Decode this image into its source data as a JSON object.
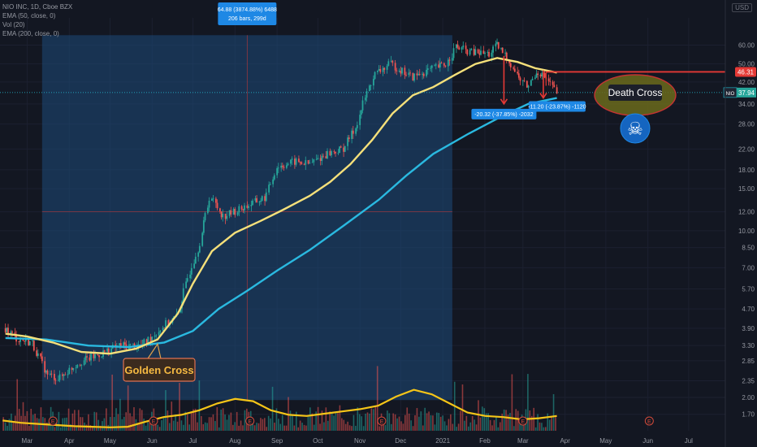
{
  "legend": {
    "symbol_line": "NIO INC, 1D, Cboe BZX",
    "ema50": "EMA (50, close, 0)",
    "vol": "Vol (20)",
    "ema200": "EMA (200, close, 0)"
  },
  "currency": "USD",
  "colors": {
    "background": "#131722",
    "ema50": "#f5e07a",
    "ema200": "#2ab9e0",
    "volume_ma": "#f5c518",
    "up_candle": "#26a69a",
    "down_candle": "#ef5350",
    "measure_box": "#1e4a7a",
    "annotation_red": "#e53935",
    "label_blue": "#1e88e5"
  },
  "chart_data": {
    "type": "candlestick",
    "y_scale": "log",
    "ylim": [
      1.45,
      78
    ],
    "y_ticks": [
      "60.00",
      "50.00",
      "42.00",
      "34.00",
      "28.00",
      "22.00",
      "18.00",
      "15.00",
      "12.00",
      "10.00",
      "8.50",
      "7.00",
      "5.70",
      "4.70",
      "3.90",
      "3.30",
      "2.85",
      "2.35",
      "2.00",
      "1.70"
    ],
    "x_ticks": [
      "Mar",
      "Apr",
      "May",
      "Jun",
      "Jul",
      "Aug",
      "Sep",
      "Oct",
      "Nov",
      "Dec",
      "2021",
      "Feb",
      "Mar",
      "Apr",
      "May",
      "Jun",
      "Jul"
    ],
    "earnings_marker": "E",
    "ema50_path": [
      [
        "2020-02-14",
        3.7
      ],
      [
        "2020-03-01",
        3.6
      ],
      [
        "2020-03-20",
        3.4
      ],
      [
        "2020-04-10",
        3.1
      ],
      [
        "2020-05-01",
        3.05
      ],
      [
        "2020-05-20",
        3.2
      ],
      [
        "2020-06-05",
        3.5
      ],
      [
        "2020-06-20",
        4.5
      ],
      [
        "2020-07-01",
        6.0
      ],
      [
        "2020-07-15",
        8.2
      ],
      [
        "2020-08-01",
        9.8
      ],
      [
        "2020-08-20",
        11.0
      ],
      [
        "2020-09-05",
        12.2
      ],
      [
        "2020-09-25",
        14.0
      ],
      [
        "2020-10-10",
        16.0
      ],
      [
        "2020-10-25",
        19.0
      ],
      [
        "2020-11-10",
        24.0
      ],
      [
        "2020-11-25",
        31.0
      ],
      [
        "2020-12-10",
        37.0
      ],
      [
        "2020-12-25",
        40.0
      ],
      [
        "2021-01-10",
        45.0
      ],
      [
        "2021-01-25",
        50.0
      ],
      [
        "2021-02-10",
        53.0
      ],
      [
        "2021-02-25",
        51.0
      ],
      [
        "2021-03-10",
        48.0
      ],
      [
        "2021-03-26",
        46.0
      ]
    ],
    "ema200_path": [
      [
        "2020-02-14",
        3.55
      ],
      [
        "2020-03-15",
        3.5
      ],
      [
        "2020-04-15",
        3.3
      ],
      [
        "2020-05-15",
        3.25
      ],
      [
        "2020-06-10",
        3.4
      ],
      [
        "2020-07-01",
        3.8
      ],
      [
        "2020-07-20",
        4.7
      ],
      [
        "2020-08-10",
        5.6
      ],
      [
        "2020-09-01",
        6.8
      ],
      [
        "2020-09-25",
        8.3
      ],
      [
        "2020-10-20",
        10.5
      ],
      [
        "2020-11-15",
        13.5
      ],
      [
        "2020-12-05",
        17.0
      ],
      [
        "2020-12-25",
        21.0
      ],
      [
        "2021-01-20",
        25.5
      ],
      [
        "2021-02-15",
        30.5
      ],
      [
        "2021-03-05",
        34.0
      ],
      [
        "2021-03-26",
        36.0
      ]
    ],
    "candles_close_path": [
      [
        "2020-02-14",
        3.9
      ],
      [
        "2020-02-24",
        3.5
      ],
      [
        "2020-03-05",
        3.4
      ],
      [
        "2020-03-16",
        2.5
      ],
      [
        "2020-03-25",
        2.4
      ],
      [
        "2020-04-08",
        2.8
      ],
      [
        "2020-04-22",
        3.0
      ],
      [
        "2020-05-08",
        3.3
      ],
      [
        "2020-05-25",
        3.3
      ],
      [
        "2020-06-08",
        3.9
      ],
      [
        "2020-06-20",
        4.4
      ],
      [
        "2020-06-30",
        7.0
      ],
      [
        "2020-07-06",
        8.7
      ],
      [
        "2020-07-14",
        14.0
      ],
      [
        "2020-07-24",
        11.5
      ],
      [
        "2020-08-05",
        12.3
      ],
      [
        "2020-08-14",
        13.0
      ],
      [
        "2020-08-24",
        13.8
      ],
      [
        "2020-09-01",
        18.5
      ],
      [
        "2020-09-15",
        19.5
      ],
      [
        "2020-09-25",
        19.0
      ],
      [
        "2020-10-08",
        21.0
      ],
      [
        "2020-10-20",
        22.0
      ],
      [
        "2020-10-29",
        27.0
      ],
      [
        "2020-11-06",
        37.0
      ],
      [
        "2020-11-12",
        45.0
      ],
      [
        "2020-11-24",
        50.0
      ],
      [
        "2020-12-02",
        47.0
      ],
      [
        "2020-12-10",
        44.0
      ],
      [
        "2020-12-22",
        47.0
      ],
      [
        "2021-01-04",
        50.0
      ],
      [
        "2021-01-11",
        59.0
      ],
      [
        "2021-01-22",
        56.0
      ],
      [
        "2021-02-05",
        55.0
      ],
      [
        "2021-02-10",
        60.0
      ],
      [
        "2021-02-18",
        53.0
      ],
      [
        "2021-02-26",
        44.0
      ],
      [
        "2021-03-05",
        40.0
      ],
      [
        "2021-03-12",
        47.0
      ],
      [
        "2021-03-19",
        43.0
      ],
      [
        "2021-03-26",
        37.94
      ]
    ],
    "measure_box": {
      "from": "2020-03-12",
      "to": "2021-01-08",
      "low": 1.95,
      "high": 66.0,
      "label_line1": "64.88 (3874.88%) 6488",
      "label_line2": "206 bars, 299d"
    },
    "drops": [
      {
        "label": "-20.32 (-37.85%) -2032",
        "from": 54.0,
        "to": 34.0,
        "date": "2021-02-15"
      },
      {
        "label": "-11.20 (-23.87%) -1120",
        "from": 47.0,
        "to": 36.0,
        "date": "2021-03-16"
      }
    ],
    "resistance_level": {
      "value": 46.31,
      "label": "46.31"
    },
    "last_price": {
      "symbol": "NIO",
      "value": 37.94,
      "label": "37.94"
    },
    "annotations": {
      "golden_cross": "Golden Cross",
      "death_cross": "Death Cross",
      "skull": "☠"
    },
    "volume_ma_path": [
      [
        0.09
      ],
      [
        0.07
      ],
      [
        0.06
      ],
      [
        0.05
      ],
      [
        0.04
      ],
      [
        0.035
      ],
      [
        0.03
      ],
      [
        0.035
      ],
      [
        0.08
      ],
      [
        0.12
      ],
      [
        0.14
      ],
      [
        0.18
      ],
      [
        0.24
      ],
      [
        0.28
      ],
      [
        0.26
      ],
      [
        0.18
      ],
      [
        0.14
      ],
      [
        0.13
      ],
      [
        0.15
      ],
      [
        0.17
      ],
      [
        0.19
      ],
      [
        0.22
      ],
      [
        0.3
      ],
      [
        0.36
      ],
      [
        0.32
      ],
      [
        0.24
      ],
      [
        0.16
      ],
      [
        0.13
      ],
      [
        0.12
      ],
      [
        0.1
      ],
      [
        0.11
      ],
      [
        0.13
      ]
    ]
  }
}
